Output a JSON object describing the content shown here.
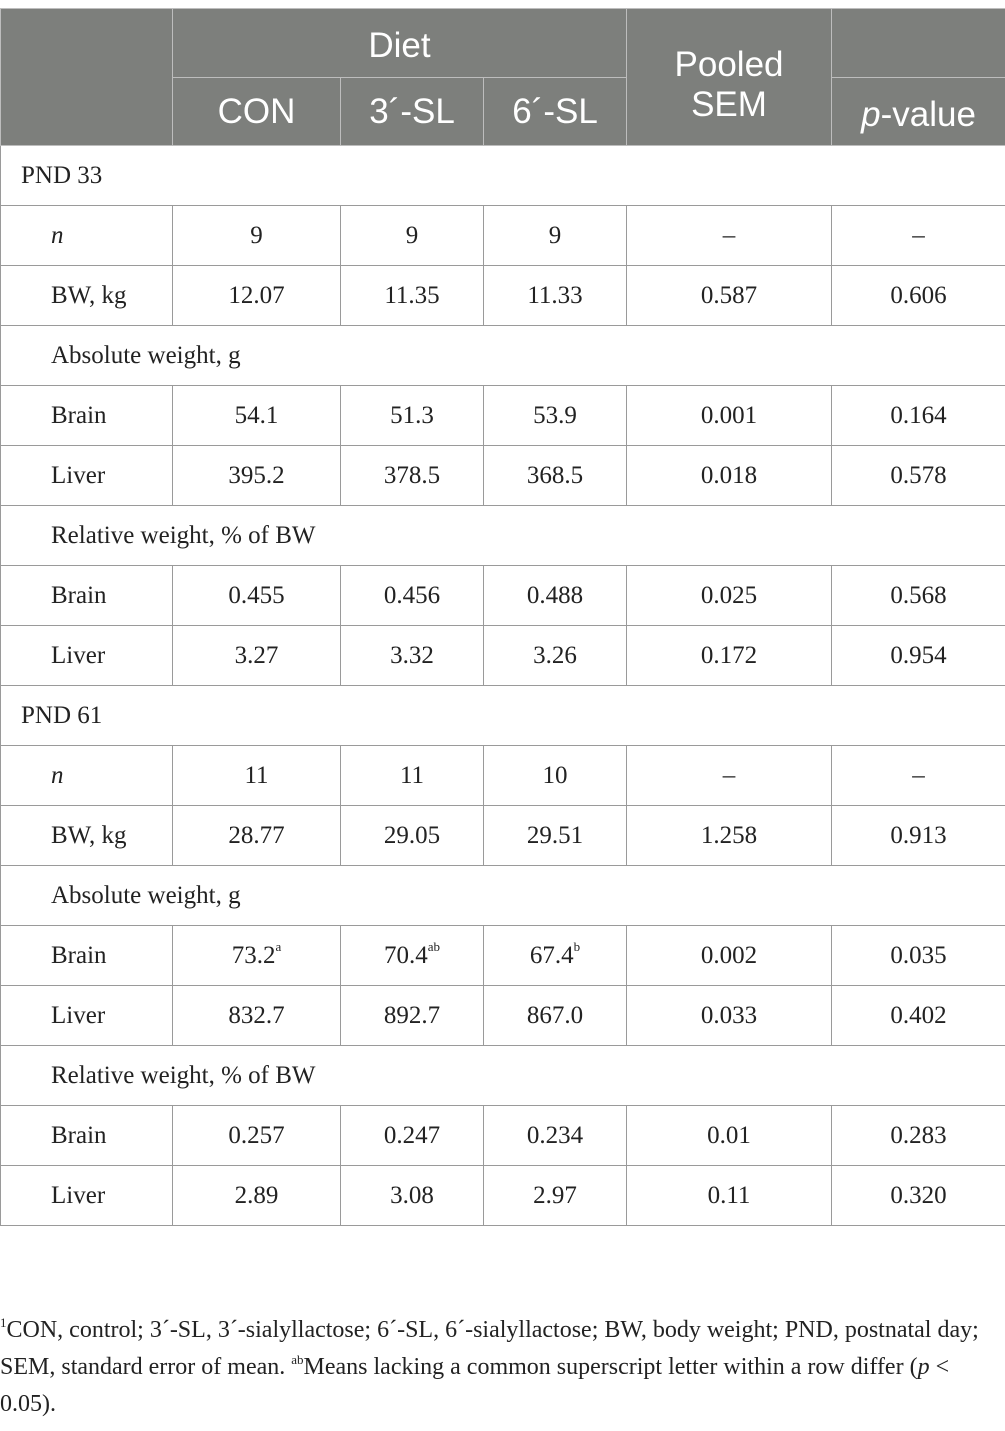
{
  "header": {
    "diet": "Diet",
    "pooled": "Pooled",
    "sem": "SEM",
    "p_italic": "p",
    "p_suffix": "-value",
    "cols": [
      "CON",
      "3´-SL",
      "6´-SL"
    ]
  },
  "rows": [
    {
      "type": "section",
      "label": "PND 33"
    },
    {
      "type": "data",
      "label": "n",
      "italic": true,
      "vals": [
        "9",
        "9",
        "9"
      ],
      "sem": "–",
      "p": "–"
    },
    {
      "type": "data",
      "label": "BW, kg",
      "vals": [
        "12.07",
        "11.35",
        "11.33"
      ],
      "sem": "0.587",
      "p": "0.606"
    },
    {
      "type": "group",
      "label": "Absolute weight, g"
    },
    {
      "type": "data",
      "label": "Brain",
      "vals": [
        "54.1",
        "51.3",
        "53.9"
      ],
      "sem": "0.001",
      "p": "0.164"
    },
    {
      "type": "data",
      "label": "Liver",
      "vals": [
        "395.2",
        "378.5",
        "368.5"
      ],
      "sem": "0.018",
      "p": "0.578"
    },
    {
      "type": "group",
      "label": "Relative weight, % of BW"
    },
    {
      "type": "data",
      "label": "Brain",
      "vals": [
        "0.455",
        "0.456",
        "0.488"
      ],
      "sem": "0.025",
      "p": "0.568"
    },
    {
      "type": "data",
      "label": "Liver",
      "vals": [
        "3.27",
        "3.32",
        "3.26"
      ],
      "sem": "0.172",
      "p": "0.954"
    },
    {
      "type": "section",
      "label": "PND 61"
    },
    {
      "type": "data",
      "label": "n",
      "italic": true,
      "vals": [
        "11",
        "11",
        "10"
      ],
      "sem": "–",
      "p": "–"
    },
    {
      "type": "data",
      "label": "BW, kg",
      "vals": [
        "28.77",
        "29.05",
        "29.51"
      ],
      "sem": "1.258",
      "p": "0.913"
    },
    {
      "type": "group",
      "label": "Absolute weight, g"
    },
    {
      "type": "data",
      "label": "Brain",
      "vals": [
        "73.2",
        "70.4",
        "67.4"
      ],
      "sups": [
        "a",
        "ab",
        "b"
      ],
      "sem": "0.002",
      "p": "0.035"
    },
    {
      "type": "data",
      "label": "Liver",
      "vals": [
        "832.7",
        "892.7",
        "867.0"
      ],
      "sem": "0.033",
      "p": "0.402"
    },
    {
      "type": "group",
      "label": "Relative weight, % of BW"
    },
    {
      "type": "data",
      "label": "Brain",
      "vals": [
        "0.257",
        "0.247",
        "0.234"
      ],
      "sem": "0.01",
      "p": "0.283"
    },
    {
      "type": "data",
      "label": "Liver",
      "vals": [
        "2.89",
        "3.08",
        "2.97"
      ],
      "sem": "0.11",
      "p": "0.320"
    }
  ],
  "footnote": {
    "sup1": "1",
    "text1": "CON, control; 3´-SL, 3´-sialyllactose; 6´-SL, 6´-sialyllactose; BW, body weight; PND, postnatal day; SEM, standard error of mean. ",
    "sup2": "ab",
    "text2": "Means lacking a common superscript letter within a row differ (",
    "p_italic": "p",
    "text3": " < 0.05)."
  }
}
